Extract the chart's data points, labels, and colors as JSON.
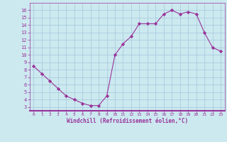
{
  "x": [
    0,
    1,
    2,
    3,
    4,
    5,
    6,
    7,
    8,
    9,
    10,
    11,
    12,
    13,
    14,
    15,
    16,
    17,
    18,
    19,
    20,
    21,
    22,
    23
  ],
  "y": [
    8.5,
    7.5,
    6.5,
    5.5,
    4.5,
    4.0,
    3.5,
    3.2,
    3.2,
    4.5,
    10.0,
    11.5,
    12.5,
    14.2,
    14.2,
    14.2,
    15.5,
    16.0,
    15.5,
    15.8,
    15.5,
    13.0,
    11.0,
    10.5
  ],
  "line_color": "#993399",
  "marker": "D",
  "marker_size": 2.2,
  "bg_color": "#cce9f0",
  "grid_color": "#aaccdd",
  "xlabel": "Windchill (Refroidissement éolien,°C)",
  "xlabel_color": "#993399",
  "tick_color": "#993399",
  "ylim": [
    2.5,
    17.0
  ],
  "xlim": [
    -0.5,
    23.5
  ],
  "yticks": [
    3,
    4,
    5,
    6,
    7,
    8,
    9,
    10,
    11,
    12,
    13,
    14,
    15,
    16
  ],
  "xticks": [
    0,
    1,
    2,
    3,
    4,
    5,
    6,
    7,
    8,
    9,
    10,
    11,
    12,
    13,
    14,
    15,
    16,
    17,
    18,
    19,
    20,
    21,
    22,
    23
  ],
  "xtick_labels": [
    "0",
    "1",
    "2",
    "3",
    "4",
    "5",
    "6",
    "7",
    "8",
    "9",
    "10",
    "11",
    "12",
    "13",
    "14",
    "15",
    "16",
    "17",
    "18",
    "19",
    "20",
    "21",
    "22",
    "23"
  ],
  "ytick_labels": [
    "3",
    "4",
    "5",
    "6",
    "7",
    "8",
    "9",
    "10",
    "11",
    "12",
    "13",
    "14",
    "15",
    "16"
  ]
}
